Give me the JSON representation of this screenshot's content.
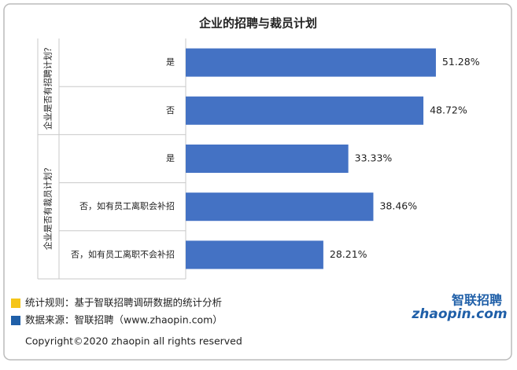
{
  "chart_data": {
    "type": "bar",
    "orientation": "horizontal",
    "title": "企业的招聘与裁员计划",
    "color": "#4472c4",
    "groups": [
      {
        "name": "企业是否有招聘计划？",
        "categories": [
          "是",
          "否"
        ],
        "values": [
          51.28,
          48.72
        ],
        "value_labels": [
          "51.28%",
          "48.72%"
        ]
      },
      {
        "name": "企业是否有裁员计划？",
        "categories": [
          "是",
          "否，如有员工离职会补招",
          "否，如有员工离职不会补招"
        ],
        "values": [
          33.33,
          38.46,
          28.21
        ],
        "value_labels": [
          "33.33%",
          "38.46%",
          "28.21%"
        ]
      }
    ]
  },
  "notes": [
    {
      "text": "统计规则：基于智联招聘调研数据的统计分析",
      "color": "#f5c518"
    },
    {
      "text": "数据来源：智联招聘（www.zhaopin.com）",
      "color": "#1f5fa8"
    }
  ],
  "copyright": "Copyright©2020 zhaopin all rights reserved",
  "logo": {
    "name": "智联招聘",
    "site": "zhaopin.com"
  }
}
